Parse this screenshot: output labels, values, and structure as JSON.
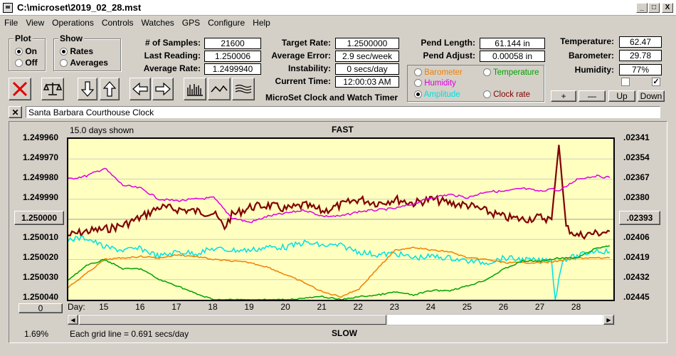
{
  "window": {
    "title": "C:\\microset\\2019_02_28.mst",
    "min": "_",
    "max": "□",
    "close": "X"
  },
  "menu": [
    "File",
    "View",
    "Operations",
    "Controls",
    "Watches",
    "GPS",
    "Configure",
    "Help"
  ],
  "plot_group": {
    "title": "Plot",
    "on": "On",
    "off": "Off",
    "selected": "On"
  },
  "show_group": {
    "title": "Show",
    "rates": "Rates",
    "averages": "Averages",
    "selected": "Rates"
  },
  "stats": {
    "samples_label": "# of Samples:",
    "samples": "21600",
    "last_label": "Last Reading:",
    "last": "1.250006",
    "avg_label": "Average Rate:",
    "avg": "1.2499940",
    "target_label": "Target Rate:",
    "target": "1.2500000",
    "avgerr_label": "Average Error:",
    "avgerr": "2.9 sec/week",
    "instab_label": "Instability:",
    "instab": "0 secs/day",
    "time_label": "Current Time:",
    "time": "12:00:03 AM",
    "pendlen_label": "Pend Length:",
    "pendlen": "61.144 in",
    "pendadj_label": "Pend Adjust:",
    "pendadj": "0.00058 in",
    "temp_label": "Temperature:",
    "temp": "62.47",
    "baro_label": "Barometer:",
    "baro": "29.78",
    "hum_label": "Humidity:",
    "hum": "77%"
  },
  "app_caption": "MicroSet Clock and Watch Timer",
  "series_select": {
    "barometer": "Barometer",
    "temperature": "Temperature",
    "humidity": "Humidity",
    "amplitude": "Amplitude",
    "clock_rate": "Clock rate",
    "selected": "Amplitude",
    "colors": {
      "barometer": "#f08000",
      "temperature": "#00a000",
      "humidity": "#e000e0",
      "amplitude": "#00e0e0",
      "clock_rate": "#800000"
    }
  },
  "right_buttons": {
    "plus": "+",
    "minus": "—",
    "up": "Up",
    "down": "Down"
  },
  "clock_name": "Santa Barbara Courthouse Clock",
  "chart": {
    "top_label": "FAST",
    "bottom_label": "SLOW",
    "days_shown": "15.0 days shown",
    "grid_note": "Each grid line = 0.691 secs/day",
    "percent": "1.69%",
    "left_ticks": [
      "1.249960",
      "1.249970",
      "1.249980",
      "1.249990",
      "1.250000",
      "1.250010",
      "1.250020",
      "1.250030",
      "1.250040"
    ],
    "right_ticks": [
      ".02341",
      ".02354",
      ".02367",
      ".02380",
      ".02393",
      ".02406",
      ".02419",
      ".02432",
      ".02445"
    ],
    "left_center_button": "1.250000",
    "right_center_button": ".02393",
    "zero_button": "0",
    "day_label": "Day:",
    "days": [
      "15",
      "16",
      "17",
      "18",
      "19",
      "20",
      "21",
      "22",
      "23",
      "24",
      "25",
      "26",
      "27",
      "28"
    ]
  },
  "chart_data": {
    "type": "line",
    "x_unit": "day",
    "xlim": [
      14.0,
      29.0
    ],
    "y_left_lim": [
      1.24996,
      1.25004
    ],
    "y_right_lim": [
      0.02341,
      0.02445
    ],
    "series": [
      {
        "name": "Clock rate",
        "color": "#800000",
        "x": [
          14.0,
          14.5,
          15.0,
          15.5,
          16.0,
          16.5,
          17.0,
          17.5,
          18.0,
          18.3,
          18.5,
          19.0,
          19.5,
          20.0,
          20.5,
          21.0,
          21.5,
          22.0,
          22.5,
          23.0,
          23.5,
          24.0,
          24.5,
          25.0,
          25.5,
          26.0,
          26.5,
          27.0,
          27.3,
          27.5,
          27.7,
          28.0,
          28.5,
          28.9
        ],
        "y": [
          1.250008,
          1.250006,
          1.250005,
          1.250003,
          1.249999,
          1.249994,
          1.249995,
          1.249996,
          1.249997,
          1.250004,
          1.249998,
          1.249994,
          1.249993,
          1.249995,
          1.249993,
          1.249996,
          1.249993,
          1.24999,
          1.249992,
          1.24999,
          1.249992,
          1.24999,
          1.249992,
          1.249993,
          1.249996,
          1.249999,
          1.25,
          1.249999,
          1.25,
          1.249963,
          1.250004,
          1.250008,
          1.250007,
          1.250006
        ]
      },
      {
        "name": "Humidity",
        "color": "#e000e0",
        "x": [
          14.0,
          14.5,
          15.0,
          15.5,
          16.0,
          16.5,
          17.0,
          17.5,
          18.0,
          18.5,
          19.0,
          19.5,
          20.0,
          20.5,
          21.0,
          21.5,
          22.0,
          22.5,
          23.0,
          23.5,
          24.0,
          24.5,
          25.0,
          25.5,
          26.0,
          26.5,
          27.0,
          27.3,
          27.5,
          28.0,
          28.5,
          28.9
        ],
        "y": [
          0.02367,
          0.02365,
          0.0236,
          0.02371,
          0.02373,
          0.0238,
          0.02381,
          0.0238,
          0.02379,
          0.02392,
          0.02395,
          0.02391,
          0.02389,
          0.02387,
          0.02391,
          0.02391,
          0.02388,
          0.02387,
          0.02386,
          0.02383,
          0.02379,
          0.02377,
          0.02379,
          0.02375,
          0.02375,
          0.02373,
          0.02375,
          0.02373,
          0.02375,
          0.02367,
          0.02365,
          0.02366
        ]
      },
      {
        "name": "Amplitude",
        "color": "#00e0e0",
        "x": [
          14.0,
          14.5,
          15.0,
          15.5,
          16.0,
          16.5,
          17.0,
          17.5,
          18.0,
          18.5,
          19.0,
          19.5,
          20.0,
          20.5,
          21.0,
          21.5,
          22.0,
          22.5,
          23.0,
          23.5,
          24.0,
          24.5,
          25.0,
          25.5,
          26.0,
          26.5,
          27.0,
          27.3,
          27.4,
          27.6,
          28.0,
          28.5,
          28.9
        ],
        "y": [
          0.02406,
          0.02405,
          0.02411,
          0.02413,
          0.02412,
          0.02417,
          0.02414,
          0.02415,
          0.02412,
          0.02413,
          0.02413,
          0.02411,
          0.02411,
          0.02408,
          0.0241,
          0.0241,
          0.02414,
          0.02416,
          0.02415,
          0.02418,
          0.02417,
          0.02418,
          0.0242,
          0.02421,
          0.02418,
          0.02419,
          0.0242,
          0.02419,
          0.02445,
          0.02419,
          0.02417,
          0.02413,
          0.02414
        ]
      },
      {
        "name": "Barometer",
        "color": "#f08000",
        "x": [
          14.0,
          14.5,
          15.0,
          15.5,
          16.0,
          16.5,
          17.0,
          17.5,
          18.0,
          18.5,
          19.0,
          19.5,
          20.0,
          20.5,
          21.0,
          21.5,
          22.0,
          22.5,
          23.0,
          23.5,
          24.0,
          24.5,
          25.0,
          25.5,
          26.0,
          26.5,
          27.0,
          27.5,
          28.0,
          28.5,
          28.9
        ],
        "y": [
          0.02437,
          0.02428,
          0.02419,
          0.02418,
          0.02417,
          0.02418,
          0.02416,
          0.02417,
          0.02419,
          0.0242,
          0.02421,
          0.02424,
          0.02429,
          0.02434,
          0.0244,
          0.02443,
          0.02438,
          0.02425,
          0.02413,
          0.02411,
          0.02413,
          0.02414,
          0.02418,
          0.02419,
          0.02421,
          0.02421,
          0.02421,
          0.0242,
          0.02418,
          0.02418,
          0.02418
        ]
      },
      {
        "name": "Temperature",
        "color": "#00a000",
        "x": [
          14.0,
          14.5,
          15.0,
          15.5,
          16.0,
          16.5,
          17.0,
          17.5,
          18.0,
          18.5,
          19.0,
          19.5,
          20.0,
          20.5,
          21.0,
          21.5,
          22.0,
          22.5,
          23.0,
          23.5,
          24.0,
          24.5,
          25.0,
          25.5,
          26.0,
          26.5,
          27.0,
          27.5,
          28.0,
          28.5,
          28.9
        ],
        "y": [
          0.02432,
          0.02423,
          0.02419,
          0.02425,
          0.02425,
          0.02432,
          0.02436,
          0.02441,
          0.02445,
          0.02445,
          0.02445,
          0.02445,
          0.02445,
          0.02444,
          0.02443,
          0.02445,
          0.02443,
          0.02442,
          0.0244,
          0.02442,
          0.02439,
          0.02439,
          0.02436,
          0.02432,
          0.02425,
          0.0242,
          0.0242,
          0.02418,
          0.02418,
          0.02412,
          0.0241
        ]
      }
    ]
  }
}
